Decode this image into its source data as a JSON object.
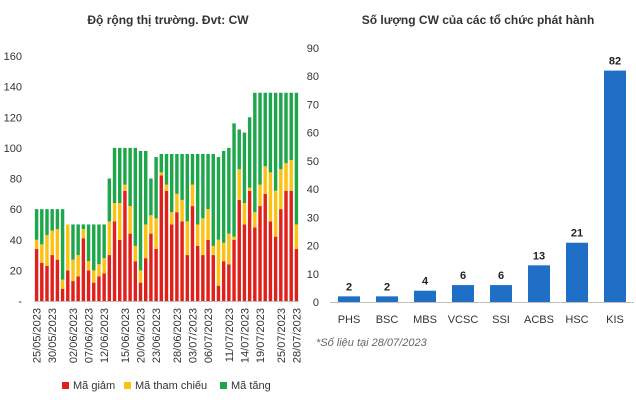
{
  "colors": {
    "decrease": "#e0201b",
    "reference": "#fcc212",
    "increase": "#1ea64a",
    "issuer_bar": "#1f6fc7",
    "axis": "#bfbfbf"
  },
  "note": "*Số liệu tại 28/07/2023",
  "chart_data": [
    {
      "type": "bar",
      "stacked": true,
      "title": "Độ rộng thị trường. Đvt: CW",
      "ylim": [
        0,
        160
      ],
      "yticks": [
        "-",
        "20",
        "40",
        "60",
        "80",
        "100",
        "120",
        "140",
        "160"
      ],
      "x_tick_labels": [
        "25/05/2023",
        "30/05/2023",
        "02/06/2023",
        "07/06/2023",
        "12/06/2023",
        "15/06/2023",
        "20/06/2023",
        "23/06/2023",
        "28/06/2023",
        "03/07/2023",
        "06/07/2023",
        "11/07/2023",
        "14/07/2023",
        "19/07/2023",
        "25/07/2023",
        "28/07/2023"
      ],
      "legend_position": "bottom",
      "series": [
        {
          "name": "Mã giảm",
          "values": [
            34,
            25,
            23,
            30,
            27,
            8,
            20,
            13,
            16,
            41,
            20,
            12,
            16,
            18,
            30,
            52,
            40,
            72,
            44,
            26,
            12,
            28,
            44,
            34,
            82,
            72,
            50,
            58,
            52,
            30,
            62,
            36,
            30,
            40,
            30,
            10,
            26,
            24,
            40,
            66,
            50,
            72,
            48,
            62,
            70,
            52,
            42,
            60,
            72,
            72,
            34
          ]
        },
        {
          "name": "Mã tham chiếu",
          "values": [
            6,
            12,
            20,
            16,
            20,
            6,
            30,
            14,
            14,
            6,
            6,
            8,
            8,
            10,
            22,
            12,
            24,
            4,
            18,
            10,
            8,
            22,
            12,
            20,
            2,
            4,
            8,
            12,
            14,
            22,
            14,
            14,
            24,
            20,
            6,
            30,
            12,
            20,
            2,
            20,
            14,
            2,
            10,
            14,
            18,
            32,
            30,
            26,
            18,
            20,
            16
          ]
        },
        {
          "name": "Mã tăng",
          "values": [
            20,
            23,
            17,
            14,
            13,
            46,
            0,
            23,
            20,
            3,
            24,
            30,
            26,
            22,
            28,
            36,
            36,
            24,
            38,
            64,
            78,
            48,
            24,
            40,
            12,
            20,
            38,
            26,
            30,
            44,
            20,
            46,
            42,
            36,
            60,
            54,
            60,
            56,
            74,
            26,
            46,
            46,
            78,
            60,
            48,
            52,
            64,
            50,
            46,
            44,
            86
          ]
        }
      ]
    },
    {
      "type": "bar",
      "title": "Số lượng CW của các tổ chức phát hành",
      "categories": [
        "PHS",
        "BSC",
        "MBS",
        "VCSC",
        "SSI",
        "ACBS",
        "HSC",
        "KIS"
      ],
      "values": [
        2,
        2,
        4,
        6,
        6,
        13,
        21,
        82
      ],
      "ylim": [
        0,
        90
      ],
      "yticks": [
        "0",
        "10",
        "20",
        "30",
        "40",
        "50",
        "60",
        "70",
        "80",
        "90"
      ]
    }
  ]
}
